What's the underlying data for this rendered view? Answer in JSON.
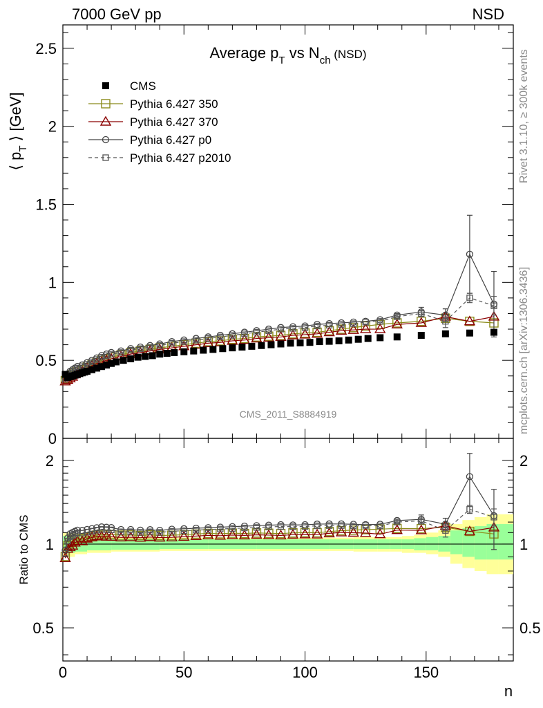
{
  "header": {
    "left": "7000 GeV pp",
    "right": "NSD"
  },
  "plot": {
    "title_main": "Average p",
    "title_sub_T": "T",
    "title_mid": " vs N",
    "title_sub_ch": "ch",
    "title_tail": " (NSD)",
    "ylabel_prefix": "⟨ p",
    "ylabel_sub": "T",
    "ylabel_suffix": " ⟩ [GeV]",
    "analysis_id": "CMS_2011_S8884919",
    "side_label_top": "Rivet 3.1.10, ≥ 300k events",
    "side_label_bottom": "mcplots.cern.ch [arXiv:1306.3436]"
  },
  "ratio": {
    "ylabel": "Ratio to CMS",
    "xlabel": "n"
  },
  "legend": [
    {
      "name": "CMS",
      "color": "#000000",
      "marker": "filled-square",
      "dashed": false
    },
    {
      "name": "Pythia 6.427 350",
      "color": "#8b8b1a",
      "marker": "open-square",
      "dashed": false
    },
    {
      "name": "Pythia 6.427 370",
      "color": "#8b0000",
      "marker": "open-triangle",
      "dashed": false
    },
    {
      "name": "Pythia 6.427 p0",
      "color": "#444444",
      "marker": "open-circle",
      "dashed": false
    },
    {
      "name": "Pythia 6.427 p2010",
      "color": "#555555",
      "marker": "open-small-square",
      "dashed": true
    }
  ],
  "chart_data": {
    "type": "scatter",
    "title": "Average pT vs Nch (NSD)",
    "xlabel": "n",
    "ylabel": "⟨ pT ⟩ [GeV]",
    "xlim": [
      0,
      186
    ],
    "ylim": [
      0,
      2.65
    ],
    "ratio_ylim_log": [
      0.38,
      2.4
    ],
    "x_ticks": [
      0,
      50,
      100,
      150
    ],
    "y_ticks": [
      0.5,
      1,
      1.5,
      2,
      2.5
    ],
    "ratio_ticks": [
      0.5,
      1,
      2
    ],
    "series": [
      {
        "name": "CMS",
        "x": [
          1,
          2,
          3,
          4,
          5,
          6,
          7,
          8,
          9,
          10,
          12,
          14,
          16,
          18,
          20,
          22,
          25,
          28,
          31,
          34,
          37,
          40,
          43,
          46,
          50,
          54,
          58,
          62,
          66,
          70,
          74,
          78,
          82,
          86,
          90,
          94,
          98,
          102,
          106,
          110,
          114,
          118,
          122,
          126,
          131,
          138,
          148,
          158,
          168,
          178
        ],
        "y": [
          0.41,
          0.39,
          0.395,
          0.4,
          0.405,
          0.41,
          0.415,
          0.42,
          0.425,
          0.43,
          0.44,
          0.45,
          0.46,
          0.47,
          0.48,
          0.49,
          0.5,
          0.51,
          0.52,
          0.525,
          0.53,
          0.54,
          0.545,
          0.55,
          0.555,
          0.56,
          0.565,
          0.57,
          0.575,
          0.58,
          0.585,
          0.59,
          0.595,
          0.6,
          0.605,
          0.61,
          0.612,
          0.615,
          0.62,
          0.622,
          0.625,
          0.63,
          0.635,
          0.64,
          0.645,
          0.65,
          0.66,
          0.67,
          0.675,
          0.68
        ]
      },
      {
        "name": "Pythia 6.427 350",
        "x": [
          1,
          2,
          3,
          4,
          5,
          6,
          8,
          10,
          12,
          14,
          16,
          18,
          20,
          24,
          28,
          32,
          36,
          40,
          45,
          50,
          55,
          60,
          65,
          70,
          75,
          80,
          85,
          90,
          95,
          100,
          105,
          110,
          115,
          120,
          125,
          131,
          138,
          148,
          158,
          168,
          178
        ],
        "y": [
          0.37,
          0.385,
          0.4,
          0.41,
          0.42,
          0.43,
          0.44,
          0.455,
          0.47,
          0.485,
          0.5,
          0.51,
          0.52,
          0.535,
          0.55,
          0.56,
          0.57,
          0.58,
          0.59,
          0.6,
          0.61,
          0.62,
          0.625,
          0.635,
          0.64,
          0.65,
          0.655,
          0.66,
          0.67,
          0.675,
          0.68,
          0.69,
          0.7,
          0.71,
          0.72,
          0.73,
          0.74,
          0.75,
          0.77,
          0.75,
          0.74
        ]
      },
      {
        "name": "Pythia 6.427 370",
        "x": [
          1,
          2,
          3,
          4,
          5,
          6,
          8,
          10,
          12,
          14,
          16,
          18,
          20,
          24,
          28,
          32,
          36,
          40,
          45,
          50,
          55,
          60,
          65,
          70,
          75,
          80,
          85,
          90,
          95,
          100,
          105,
          110,
          115,
          120,
          125,
          131,
          138,
          148,
          158,
          168,
          178
        ],
        "y": [
          0.365,
          0.375,
          0.385,
          0.395,
          0.41,
          0.42,
          0.43,
          0.45,
          0.465,
          0.48,
          0.49,
          0.5,
          0.51,
          0.525,
          0.54,
          0.55,
          0.56,
          0.57,
          0.58,
          0.59,
          0.6,
          0.61,
          0.615,
          0.625,
          0.63,
          0.64,
          0.645,
          0.65,
          0.66,
          0.665,
          0.67,
          0.68,
          0.69,
          0.695,
          0.7,
          0.7,
          0.73,
          0.74,
          0.78,
          0.75,
          0.78
        ]
      },
      {
        "name": "Pythia 6.427 p0",
        "x": [
          1,
          2,
          3,
          4,
          5,
          6,
          8,
          10,
          12,
          14,
          16,
          18,
          20,
          24,
          28,
          32,
          36,
          40,
          45,
          50,
          55,
          60,
          65,
          70,
          75,
          80,
          85,
          90,
          95,
          100,
          105,
          110,
          115,
          120,
          125,
          131,
          138,
          148,
          158,
          168,
          178
        ],
        "y": [
          0.39,
          0.41,
          0.43,
          0.44,
          0.45,
          0.46,
          0.47,
          0.485,
          0.5,
          0.515,
          0.53,
          0.54,
          0.55,
          0.56,
          0.575,
          0.585,
          0.595,
          0.605,
          0.62,
          0.63,
          0.64,
          0.65,
          0.66,
          0.67,
          0.68,
          0.69,
          0.7,
          0.71,
          0.715,
          0.72,
          0.73,
          0.735,
          0.74,
          0.745,
          0.75,
          0.76,
          0.79,
          0.81,
          0.79,
          1.18,
          0.86
        ],
        "y_err": [
          0,
          0,
          0,
          0,
          0,
          0,
          0,
          0,
          0,
          0,
          0,
          0,
          0,
          0,
          0,
          0,
          0,
          0,
          0,
          0,
          0,
          0,
          0,
          0,
          0,
          0,
          0,
          0,
          0,
          0,
          0,
          0,
          0,
          0,
          0,
          0,
          0.01,
          0.03,
          0.04,
          0.25,
          0.21
        ]
      },
      {
        "name": "Pythia 6.427 p2010",
        "x": [
          1,
          2,
          3,
          4,
          5,
          6,
          8,
          10,
          12,
          14,
          16,
          18,
          20,
          24,
          28,
          32,
          36,
          40,
          45,
          50,
          55,
          60,
          65,
          70,
          75,
          80,
          85,
          90,
          95,
          100,
          105,
          110,
          115,
          120,
          125,
          131,
          138,
          148,
          158,
          168,
          178
        ],
        "y": [
          0.38,
          0.4,
          0.42,
          0.43,
          0.44,
          0.45,
          0.46,
          0.475,
          0.49,
          0.505,
          0.52,
          0.53,
          0.54,
          0.55,
          0.565,
          0.575,
          0.585,
          0.595,
          0.61,
          0.62,
          0.63,
          0.64,
          0.65,
          0.66,
          0.67,
          0.68,
          0.69,
          0.7,
          0.705,
          0.71,
          0.72,
          0.725,
          0.73,
          0.735,
          0.745,
          0.75,
          0.78,
          0.8,
          0.75,
          0.9,
          0.85
        ],
        "y_err": [
          0,
          0,
          0,
          0,
          0,
          0,
          0,
          0,
          0,
          0,
          0,
          0,
          0,
          0,
          0,
          0,
          0,
          0,
          0,
          0,
          0,
          0,
          0,
          0,
          0,
          0,
          0,
          0,
          0,
          0,
          0,
          0,
          0,
          0,
          0,
          0,
          0.01,
          0.02,
          0.04,
          0.03,
          0.06
        ]
      }
    ],
    "ratio_band": {
      "x_edges": [
        0,
        5,
        10,
        20,
        40,
        60,
        80,
        100,
        110,
        120,
        130,
        135,
        140,
        145,
        150,
        155,
        160,
        165,
        170,
        175,
        180,
        186
      ],
      "green_lo": [
        0.93,
        0.94,
        0.95,
        0.955,
        0.96,
        0.96,
        0.96,
        0.96,
        0.96,
        0.96,
        0.96,
        0.96,
        0.96,
        0.95,
        0.95,
        0.94,
        0.92,
        0.9,
        0.88,
        0.88,
        0.88
      ],
      "green_hi": [
        1.07,
        1.06,
        1.05,
        1.045,
        1.04,
        1.04,
        1.04,
        1.04,
        1.04,
        1.04,
        1.04,
        1.04,
        1.04,
        1.05,
        1.06,
        1.07,
        1.12,
        1.14,
        1.16,
        1.18,
        1.18
      ],
      "yellow_lo": [
        0.9,
        0.92,
        0.93,
        0.94,
        0.945,
        0.945,
        0.945,
        0.945,
        0.945,
        0.94,
        0.94,
        0.94,
        0.93,
        0.93,
        0.92,
        0.9,
        0.85,
        0.82,
        0.8,
        0.78,
        0.78
      ],
      "yellow_hi": [
        1.1,
        1.08,
        1.07,
        1.06,
        1.055,
        1.055,
        1.055,
        1.055,
        1.055,
        1.06,
        1.06,
        1.06,
        1.07,
        1.08,
        1.1,
        1.12,
        1.18,
        1.22,
        1.25,
        1.28,
        1.28
      ]
    },
    "legend_position": "top-left",
    "grid": false
  }
}
